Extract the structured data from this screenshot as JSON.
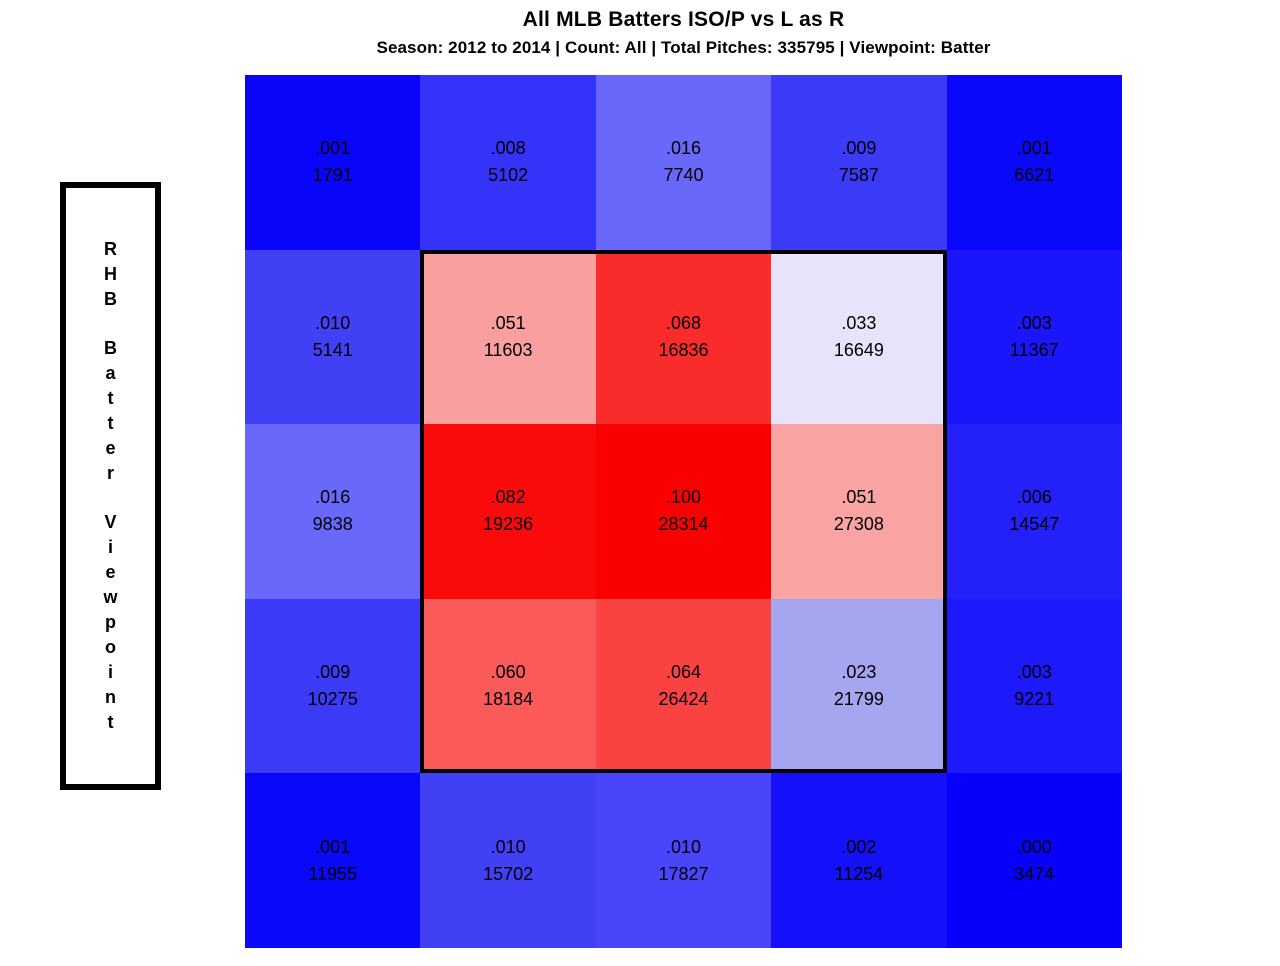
{
  "title": "All MLB Batters ISO/P vs L as R",
  "subtitle": "Season: 2012 to 2014 | Count: All | Total Pitches: 335795 | Viewpoint: Batter",
  "side_label": "RHB Batter Viewpoint",
  "chart_data": {
    "type": "heatmap",
    "title": "All MLB Batters ISO/P vs L as R",
    "subtitle_fields": {
      "season": "2012 to 2014",
      "count": "All",
      "total_pitches": "335795",
      "viewpoint": "Batter"
    },
    "viewpoint_label": "RHB Batter Viewpoint",
    "metric": "ISO/P",
    "grid": {
      "rows": 5,
      "cols": 5
    },
    "colormap": {
      "low": "#0800FA",
      "mid": "#FFFFFF",
      "high": "#FA0000"
    },
    "strike_zone": {
      "row_start": 2,
      "col_start": 2,
      "row_end": 4,
      "col_end": 4
    },
    "cells": [
      [
        {
          "iso": ".001",
          "pitches": "1791",
          "color": "#0805FA"
        },
        {
          "iso": ".008",
          "pitches": "5102",
          "color": "#3533FA"
        },
        {
          "iso": ".016",
          "pitches": "7740",
          "color": "#6A68FA"
        },
        {
          "iso": ".009",
          "pitches": "7587",
          "color": "#3B3AF7"
        },
        {
          "iso": ".001",
          "pitches": "6621",
          "color": "#0A08FA"
        }
      ],
      [
        {
          "iso": ".010",
          "pitches": "5141",
          "color": "#4240F5"
        },
        {
          "iso": ".051",
          "pitches": "11603",
          "color": "#FA9F9F"
        },
        {
          "iso": ".068",
          "pitches": "16836",
          "color": "#FA2B2B"
        },
        {
          "iso": ".033",
          "pitches": "16649",
          "color": "#E6E3FA"
        },
        {
          "iso": ".003",
          "pitches": "11367",
          "color": "#1A15FA"
        }
      ],
      [
        {
          "iso": ".016",
          "pitches": "9838",
          "color": "#6A68FA"
        },
        {
          "iso": ".082",
          "pitches": "19236",
          "color": "#FA0A0A"
        },
        {
          "iso": ".100",
          "pitches": "28314",
          "color": "#FA0000"
        },
        {
          "iso": ".051",
          "pitches": "27308",
          "color": "#FAA3A3"
        },
        {
          "iso": ".006",
          "pitches": "14547",
          "color": "#2420FA"
        }
      ],
      [
        {
          "iso": ".009",
          "pitches": "10275",
          "color": "#3B3AF7"
        },
        {
          "iso": ".060",
          "pitches": "18184",
          "color": "#FA5A5A"
        },
        {
          "iso": ".064",
          "pitches": "26424",
          "color": "#FA4242"
        },
        {
          "iso": ".023",
          "pitches": "21799",
          "color": "#A5A5F0"
        },
        {
          "iso": ".003",
          "pitches": "9221",
          "color": "#1C1AFA"
        }
      ],
      [
        {
          "iso": ".001",
          "pitches": "11955",
          "color": "#0A08FA"
        },
        {
          "iso": ".010",
          "pitches": "15702",
          "color": "#4240F5"
        },
        {
          "iso": ".010",
          "pitches": "17827",
          "color": "#4845FA"
        },
        {
          "iso": ".002",
          "pitches": "11254",
          "color": "#1410FA"
        },
        {
          "iso": ".000",
          "pitches": "3474",
          "color": "#0700FA"
        }
      ]
    ]
  }
}
